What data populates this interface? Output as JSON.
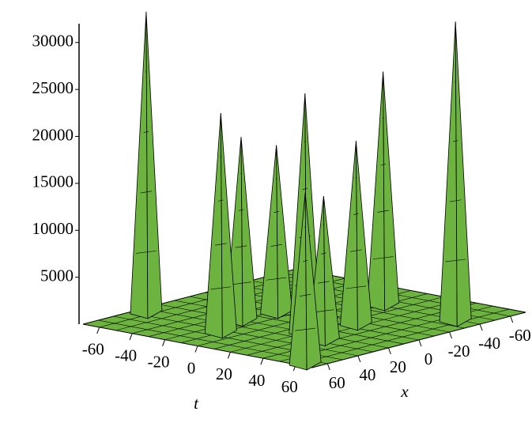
{
  "chart_data": {
    "type": "surface3d",
    "t_label": "t",
    "x_label": "x",
    "tlim": [
      -70,
      70
    ],
    "xlim": [
      -70,
      70
    ],
    "zlim": [
      0,
      32000
    ],
    "tticks": [
      -60,
      -40,
      -20,
      0,
      20,
      40,
      60
    ],
    "xticks": [
      60,
      40,
      20,
      0,
      -20,
      -40,
      -60
    ],
    "zticks": [
      5000,
      10000,
      15000,
      20000,
      25000,
      30000
    ],
    "color": "#6db33f",
    "peaks": [
      {
        "t": 9,
        "x": -42,
        "z": 24800
      },
      {
        "t": -18,
        "x": -1,
        "z": 17800
      },
      {
        "t": 56,
        "x": -39,
        "z": 31800
      },
      {
        "t": -64,
        "x": 35,
        "z": 32000
      },
      {
        "t": 26,
        "x": -6,
        "z": 19500
      },
      {
        "t": -20,
        "x": 20,
        "z": 19500
      },
      {
        "t": 19,
        "x": 20,
        "z": 25400
      },
      {
        "t": -11,
        "x": 43,
        "z": 23300
      },
      {
        "t": 36,
        "x": 26,
        "z": 15300
      },
      {
        "t": 62,
        "x": 66,
        "z": 18200
      }
    ]
  }
}
